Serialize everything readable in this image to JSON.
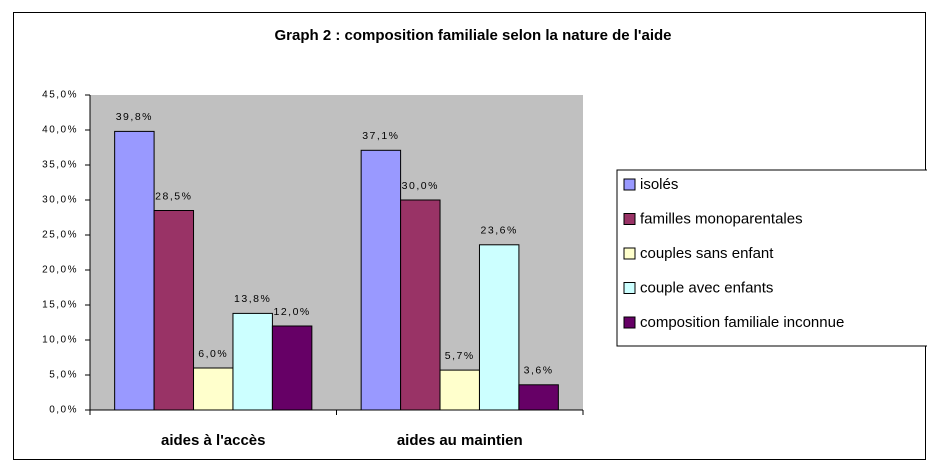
{
  "chart_data": {
    "type": "bar",
    "title": "Graph 2 : composition familiale selon la nature de l'aide",
    "categories": [
      "aides à l'accès",
      "aides au maintien"
    ],
    "series": [
      {
        "name": "isolés",
        "color": "#9999ff",
        "values": [
          39.8,
          37.1
        ],
        "value_labels": [
          "39,8%",
          "37,1%"
        ]
      },
      {
        "name": "familles monoparentales",
        "color": "#993366",
        "values": [
          28.5,
          30.0
        ],
        "value_labels": [
          "28,5%",
          "30,0%"
        ]
      },
      {
        "name": "couples sans enfant",
        "color": "#ffffcc",
        "values": [
          6.0,
          5.7
        ],
        "value_labels": [
          "6,0%",
          "5,7%"
        ]
      },
      {
        "name": "couple avec enfants",
        "color": "#ccffff",
        "values": [
          13.8,
          23.6
        ],
        "value_labels": [
          "13,8%",
          "23,6%"
        ]
      },
      {
        "name": "composition familiale inconnue",
        "color": "#660066",
        "values": [
          12.0,
          3.6
        ],
        "value_labels": [
          "12,0%",
          "3,6%"
        ]
      }
    ],
    "ylim": [
      0,
      45
    ],
    "yticks": [
      {
        "value": 0,
        "label": "0,0%"
      },
      {
        "value": 5,
        "label": "5,0%"
      },
      {
        "value": 10,
        "label": "10,0%"
      },
      {
        "value": 15,
        "label": "15,0%"
      },
      {
        "value": 20,
        "label": "20,0%"
      },
      {
        "value": 25,
        "label": "25,0%"
      },
      {
        "value": 30,
        "label": "30,0%"
      },
      {
        "value": 35,
        "label": "35,0%"
      },
      {
        "value": 40,
        "label": "40,0%"
      },
      {
        "value": 45,
        "label": "45,0%"
      }
    ],
    "grid": false,
    "legend": "right",
    "plot_background": "#c0c0c0"
  }
}
